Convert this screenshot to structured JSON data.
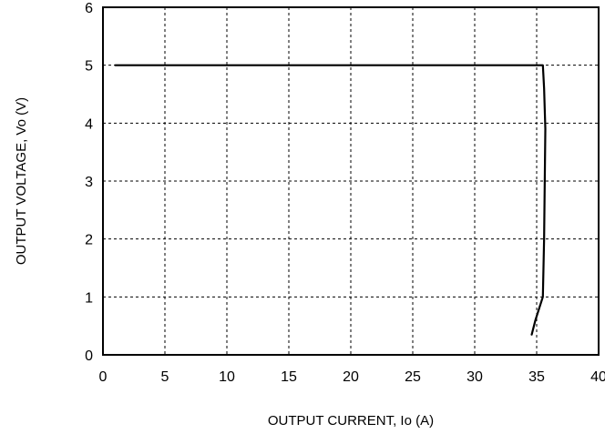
{
  "chart_data": {
    "type": "line",
    "xlabel": "OUTPUT CURRENT, Io (A)",
    "ylabel": "OUTPUT VOLTAGE, Vo (V)",
    "xlim": [
      0,
      40
    ],
    "ylim": [
      0,
      6
    ],
    "x_ticks": [
      "0",
      "5",
      "10",
      "15",
      "20",
      "25",
      "30",
      "35",
      "40"
    ],
    "y_ticks": [
      "0",
      "1",
      "2",
      "3",
      "4",
      "5",
      "6"
    ],
    "grid": true,
    "series": [
      {
        "x": [
          1.0,
          35.5,
          35.6,
          35.7,
          35.6,
          35.5,
          35.2,
          34.9,
          34.6
        ],
        "y": [
          5.0,
          5.0,
          4.6,
          3.9,
          2.0,
          1.0,
          0.8,
          0.6,
          0.35
        ]
      }
    ]
  }
}
